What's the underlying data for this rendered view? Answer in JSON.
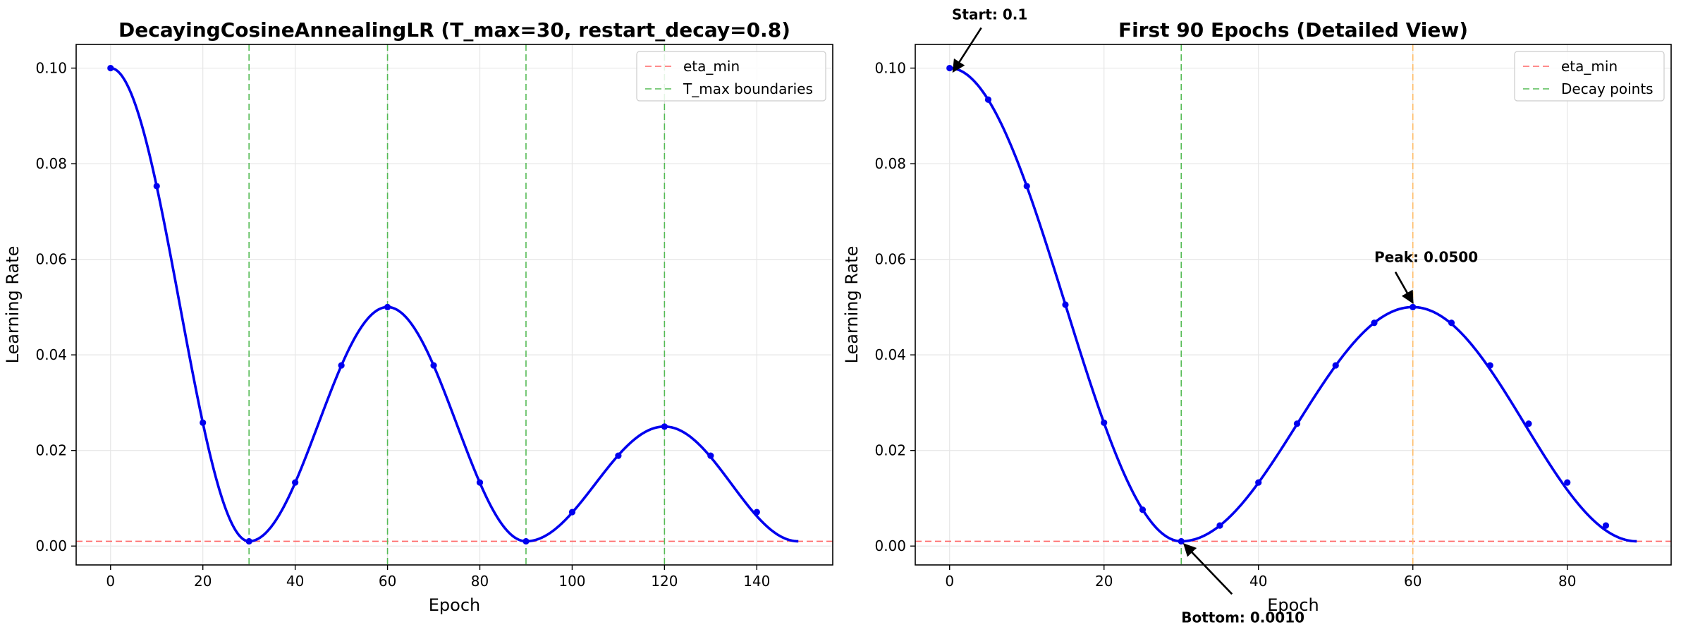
{
  "chart_data": [
    {
      "type": "line",
      "title": "DecayingCosineAnnealingLR (T_max=30, restart_decay=0.8)",
      "xlabel": "Epoch",
      "ylabel": "Learning Rate",
      "xlim": [
        -7.45,
        156.45
      ],
      "ylim": [
        -0.00395,
        0.10495
      ],
      "xticks": [
        0,
        20,
        40,
        60,
        80,
        100,
        120,
        140
      ],
      "yticks": [
        0.0,
        0.02,
        0.04,
        0.06,
        0.08,
        0.1
      ],
      "xtick_labels": [
        "0",
        "20",
        "40",
        "60",
        "80",
        "100",
        "120",
        "140"
      ],
      "ytick_labels": [
        "0.00",
        "0.02",
        "0.04",
        "0.06",
        "0.08",
        "0.10"
      ],
      "grid": true,
      "legend_position": "top-right",
      "curve": {
        "type": "decaying-cosine",
        "x_start": 0,
        "x_end": 149,
        "eta_min": 0.001,
        "segments": [
          [
            0,
            30,
            0.1,
            0.001
          ],
          [
            30,
            60,
            0.001,
            0.05
          ],
          [
            60,
            90,
            0.05,
            0.001
          ],
          [
            90,
            120,
            0.001,
            0.025
          ],
          [
            120,
            149,
            0.025,
            0.001
          ]
        ],
        "color": "#0000ee"
      },
      "markers": {
        "x": [
          0,
          10,
          20,
          30,
          40,
          50,
          60,
          70,
          80,
          90,
          100,
          110,
          120,
          130,
          140
        ],
        "y": [
          0.1,
          0.0753,
          0.0258,
          0.001,
          0.0133,
          0.0378,
          0.05,
          0.0378,
          0.0133,
          0.001,
          0.0071,
          0.0189,
          0.025,
          0.0189,
          0.0071
        ]
      },
      "hline": {
        "y": 0.001,
        "label": "eta_min",
        "color": "#ff6666"
      },
      "vlines": [
        {
          "x": 30,
          "color": "#55bb55"
        },
        {
          "x": 60,
          "color": "#55bb55"
        },
        {
          "x": 90,
          "color": "#55bb55"
        },
        {
          "x": 120,
          "color": "#55bb55"
        }
      ],
      "legend": [
        {
          "label": "eta_min",
          "color": "#ff6666"
        },
        {
          "label": "T_max boundaries",
          "color": "#55bb55"
        }
      ],
      "annotations": []
    },
    {
      "type": "line",
      "title": "First 90 Epochs (Detailed View)",
      "xlabel": "Epoch",
      "ylabel": "Learning Rate",
      "xlim": [
        -4.45,
        93.45
      ],
      "ylim": [
        -0.00395,
        0.10495
      ],
      "xticks": [
        0,
        20,
        40,
        60,
        80
      ],
      "yticks": [
        0.0,
        0.02,
        0.04,
        0.06,
        0.08,
        0.1
      ],
      "xtick_labels": [
        "0",
        "20",
        "40",
        "60",
        "80"
      ],
      "ytick_labels": [
        "0.00",
        "0.02",
        "0.04",
        "0.06",
        "0.08",
        "0.10"
      ],
      "grid": true,
      "legend_position": "top-right",
      "curve": {
        "type": "decaying-cosine",
        "x_start": 0,
        "x_end": 89,
        "eta_min": 0.001,
        "segments": [
          [
            0,
            30,
            0.1,
            0.001
          ],
          [
            30,
            60,
            0.001,
            0.05
          ],
          [
            60,
            89,
            0.05,
            0.001
          ]
        ],
        "color": "#0000ee"
      },
      "markers": {
        "x": [
          0,
          5,
          10,
          15,
          20,
          25,
          30,
          35,
          40,
          45,
          50,
          55,
          60,
          65,
          70,
          75,
          80,
          85
        ],
        "y": [
          0.1,
          0.0934,
          0.0753,
          0.0505,
          0.0258,
          0.0076,
          0.001,
          0.0043,
          0.0133,
          0.0256,
          0.0378,
          0.0467,
          0.05,
          0.0467,
          0.0378,
          0.0256,
          0.0133,
          0.0043
        ]
      },
      "hline": {
        "y": 0.001,
        "label": "eta_min",
        "color": "#ff6666"
      },
      "vlines": [
        {
          "x": 30,
          "color": "#55bb55"
        },
        {
          "x": 60,
          "color": "#ffbb66"
        }
      ],
      "legend": [
        {
          "label": "eta_min",
          "color": "#ff6666"
        },
        {
          "label": "Decay points",
          "color": "#55bb55"
        }
      ],
      "annotations": [
        {
          "text": "Start: 0.1",
          "x": 0,
          "y": 0.1,
          "text_x": 5.2,
          "text_y": 0.1102
        },
        {
          "text": "Peak: 0.0500",
          "x": 60,
          "y": 0.05,
          "text_x": 55,
          "text_y": 0.0594
        },
        {
          "text": "Bottom: 0.0010",
          "x": 30,
          "y": 0.001,
          "text_x": 30,
          "text_y": -0.013
        }
      ]
    }
  ]
}
